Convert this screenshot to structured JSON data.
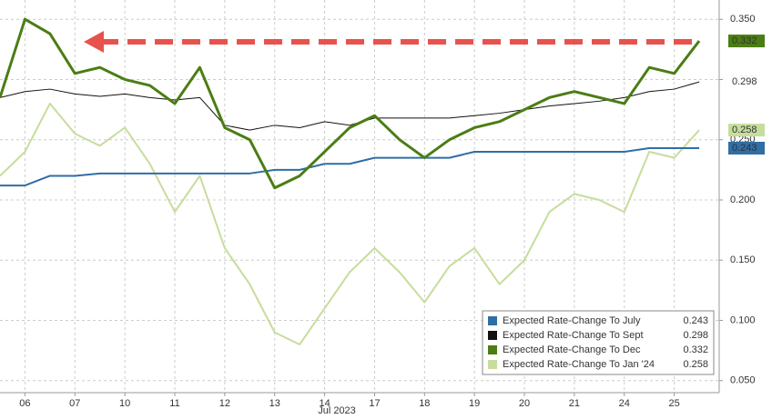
{
  "chart_data": {
    "type": "line",
    "x_label": "Jul 2023",
    "x": [
      -0.5,
      0,
      0.5,
      1,
      1.5,
      2,
      2.5,
      3,
      3.5,
      4,
      4.5,
      5,
      5.5,
      6,
      6.5,
      7,
      7.5,
      8,
      8.5,
      9,
      9.5,
      10,
      10.5,
      11,
      11.5,
      12,
      12.5,
      13,
      13.5
    ],
    "xlim": [
      -0.5,
      13.9
    ],
    "xticks": [
      {
        "value": 0,
        "label": "06"
      },
      {
        "value": 1,
        "label": "07"
      },
      {
        "value": 2,
        "label": "10"
      },
      {
        "value": 3,
        "label": "11"
      },
      {
        "value": 4,
        "label": "12"
      },
      {
        "value": 5,
        "label": "13"
      },
      {
        "value": 6,
        "label": "14"
      },
      {
        "value": 7,
        "label": "17"
      },
      {
        "value": 8,
        "label": "18"
      },
      {
        "value": 9,
        "label": "19"
      },
      {
        "value": 10,
        "label": "20"
      },
      {
        "value": 11,
        "label": "21"
      },
      {
        "value": 12,
        "label": "24"
      },
      {
        "value": 13,
        "label": "25"
      }
    ],
    "ylim": [
      0.04,
      0.366
    ],
    "yticks": [
      {
        "value": 0.05,
        "label": "0.050"
      },
      {
        "value": 0.1,
        "label": "0.100"
      },
      {
        "value": 0.15,
        "label": "0.150"
      },
      {
        "value": 0.2,
        "label": "0.200"
      },
      {
        "value": 0.25,
        "label": "0.250"
      },
      {
        "value": 0.3,
        "label": "0.300"
      },
      {
        "value": 0.35,
        "label": "0.350"
      }
    ],
    "grid": true,
    "legend": "lower right",
    "series": [
      {
        "name": "Expected Rate-Change To July",
        "color": "#2f6ea6",
        "values": [
          0.212,
          0.212,
          0.22,
          0.22,
          0.222,
          0.222,
          0.222,
          0.222,
          0.222,
          0.222,
          0.222,
          0.225,
          0.225,
          0.23,
          0.23,
          0.235,
          0.235,
          0.235,
          0.235,
          0.24,
          0.24,
          0.24,
          0.24,
          0.24,
          0.24,
          0.24,
          0.243,
          0.243,
          0.243
        ]
      },
      {
        "name": "Expected Rate-Change To Sept",
        "color": "#111111",
        "values": [
          0.285,
          0.29,
          0.292,
          0.288,
          0.286,
          0.288,
          0.285,
          0.283,
          0.285,
          0.262,
          0.258,
          0.262,
          0.26,
          0.265,
          0.262,
          0.268,
          0.268,
          0.268,
          0.268,
          0.27,
          0.272,
          0.275,
          0.278,
          0.28,
          0.282,
          0.285,
          0.29,
          0.292,
          0.298
        ]
      },
      {
        "name": "Expected Rate-Change To Dec",
        "color": "#4b7d14",
        "values": [
          0.285,
          0.35,
          0.338,
          0.305,
          0.31,
          0.3,
          0.295,
          0.28,
          0.31,
          0.26,
          0.25,
          0.21,
          0.22,
          0.24,
          0.26,
          0.27,
          0.25,
          0.235,
          0.25,
          0.26,
          0.265,
          0.275,
          0.285,
          0.29,
          0.285,
          0.28,
          0.31,
          0.305,
          0.332
        ]
      },
      {
        "name": "Expected Rate-Change To Jan '24",
        "color": "#c6dd9c",
        "values": [
          0.22,
          0.24,
          0.28,
          0.255,
          0.245,
          0.26,
          0.23,
          0.19,
          0.22,
          0.16,
          0.13,
          0.09,
          0.08,
          0.11,
          0.14,
          0.16,
          0.14,
          0.115,
          0.145,
          0.16,
          0.13,
          0.15,
          0.19,
          0.205,
          0.2,
          0.19,
          0.24,
          0.235,
          0.258
        ]
      }
    ]
  }
}
